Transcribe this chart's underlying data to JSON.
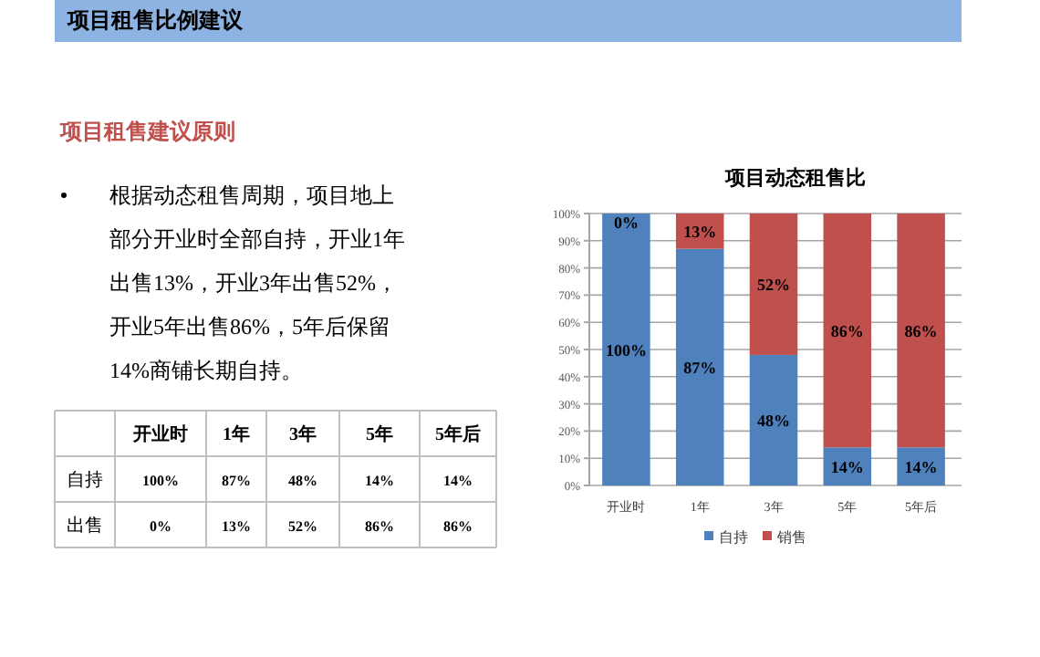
{
  "chart_data": {
    "type": "bar",
    "stacked": true,
    "title": "项目动态租售比",
    "annotations": [
      "项目租售比例建议",
      "项目租售建议原则",
      "根据动态租售周期，项目地上部分开业时全部自持，开业1年出售13%，开业3年出售52%，开业5年出售86%，5年后保留14%商铺长期自持。",
      "自持",
      "出售"
    ],
    "categories": [
      "开业时",
      "1年",
      "3年",
      "5年",
      "5年后"
    ],
    "series": [
      {
        "name": "自持",
        "color": "#4f81bd",
        "values": [
          100,
          87,
          48,
          14,
          14
        ],
        "value_labels": [
          "100%",
          "87%",
          "48%",
          "14%",
          "14%"
        ]
      },
      {
        "name": "销售",
        "color": "#c0504d",
        "values": [
          0,
          13,
          52,
          86,
          86
        ],
        "value_labels": [
          "0%",
          "13%",
          "52%",
          "86%",
          "86%"
        ]
      }
    ],
    "ylim": [
      0,
      100
    ],
    "yticks": [
      {
        "value": 0,
        "label": "0%"
      },
      {
        "value": 10,
        "label": "10%"
      },
      {
        "value": 20,
        "label": "20%"
      },
      {
        "value": 30,
        "label": "30%"
      },
      {
        "value": 40,
        "label": "40%"
      },
      {
        "value": 50,
        "label": "50%"
      },
      {
        "value": 60,
        "label": "60%"
      },
      {
        "value": 70,
        "label": "70%"
      },
      {
        "value": 80,
        "label": "80%"
      },
      {
        "value": 90,
        "label": "90%"
      },
      {
        "value": 100,
        "label": "100%"
      }
    ],
    "grid": "y",
    "legend": "bottom"
  }
}
